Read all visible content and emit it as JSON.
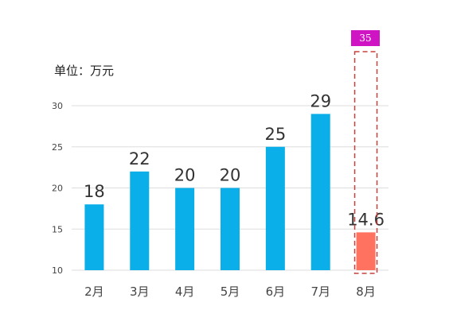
{
  "unit_label": "单位：万元",
  "target": {
    "label": "35",
    "value": 35
  },
  "colors": {
    "bar": "#0aaee8",
    "highlight_bar": "#ff7260",
    "target_badge": "#cf14c3",
    "target_outline": "#c8413d",
    "grid": "#dddddd",
    "axis_text": "#444444",
    "value_text": "#333333"
  },
  "chart_data": {
    "type": "bar",
    "categories": [
      "2月",
      "3月",
      "4月",
      "5月",
      "6月",
      "7月",
      "8月"
    ],
    "values": [
      18,
      22,
      20,
      20,
      25,
      29,
      14.6
    ],
    "value_labels": [
      "18",
      "22",
      "20",
      "20",
      "25",
      "29",
      "14.6"
    ],
    "yticks": [
      10,
      15,
      20,
      25,
      30
    ],
    "ylim": [
      10,
      30
    ],
    "highlight_index": 6,
    "grid": true,
    "legend": "none"
  }
}
